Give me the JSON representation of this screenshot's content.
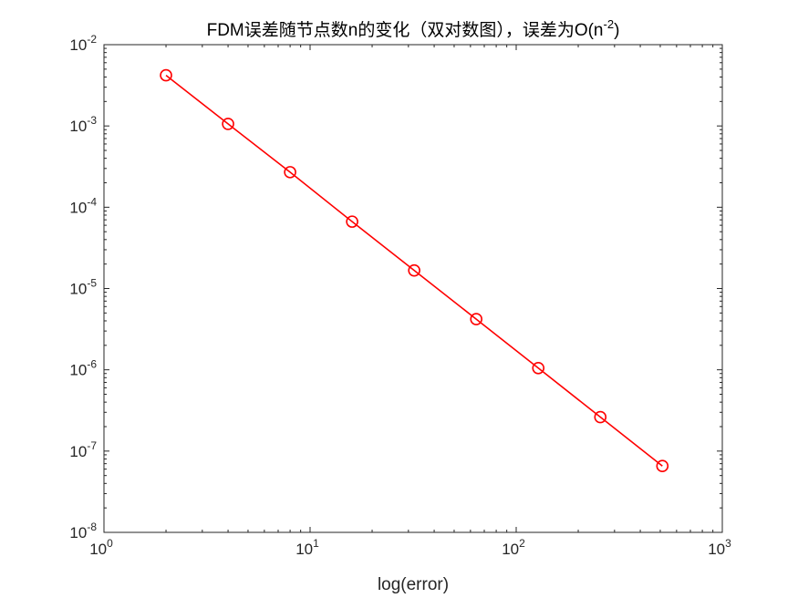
{
  "chart_data": {
    "type": "line",
    "title": "FDM误差随节点数n的变化（双对数图），误差为O(n⁻²)",
    "title_parts": {
      "main": "FDM误差随节点数n的变化（双对数图），误差为O(n",
      "sup": "-2",
      "tail": ")"
    },
    "xlabel": "log(error)",
    "ylabel": "",
    "x_scale": "log",
    "y_scale": "log",
    "xlim": [
      1,
      1000
    ],
    "ylim": [
      1e-08,
      0.01
    ],
    "x_ticks": [
      {
        "base": "10",
        "exp": "0",
        "value": 1
      },
      {
        "base": "10",
        "exp": "1",
        "value": 10
      },
      {
        "base": "10",
        "exp": "2",
        "value": 100
      },
      {
        "base": "10",
        "exp": "3",
        "value": 1000
      }
    ],
    "y_ticks": [
      {
        "base": "10",
        "exp": "-8",
        "value": 1e-08
      },
      {
        "base": "10",
        "exp": "-7",
        "value": 1e-07
      },
      {
        "base": "10",
        "exp": "-6",
        "value": 1e-06
      },
      {
        "base": "10",
        "exp": "-5",
        "value": 1e-05
      },
      {
        "base": "10",
        "exp": "-4",
        "value": 0.0001
      },
      {
        "base": "10",
        "exp": "-3",
        "value": 0.001
      },
      {
        "base": "10",
        "exp": "-2",
        "value": 0.01
      }
    ],
    "grid": false,
    "series": [
      {
        "x": [
          2,
          4,
          8,
          16,
          32,
          64,
          128,
          256,
          512
        ],
        "y": [
          0.0042,
          0.00106,
          0.00027,
          6.65e-05,
          1.67e-05,
          4.2e-06,
          1.05e-06,
          2.62e-07,
          6.55e-08
        ],
        "color": "#ff0000",
        "marker": "circle-open",
        "line": "solid"
      }
    ]
  }
}
